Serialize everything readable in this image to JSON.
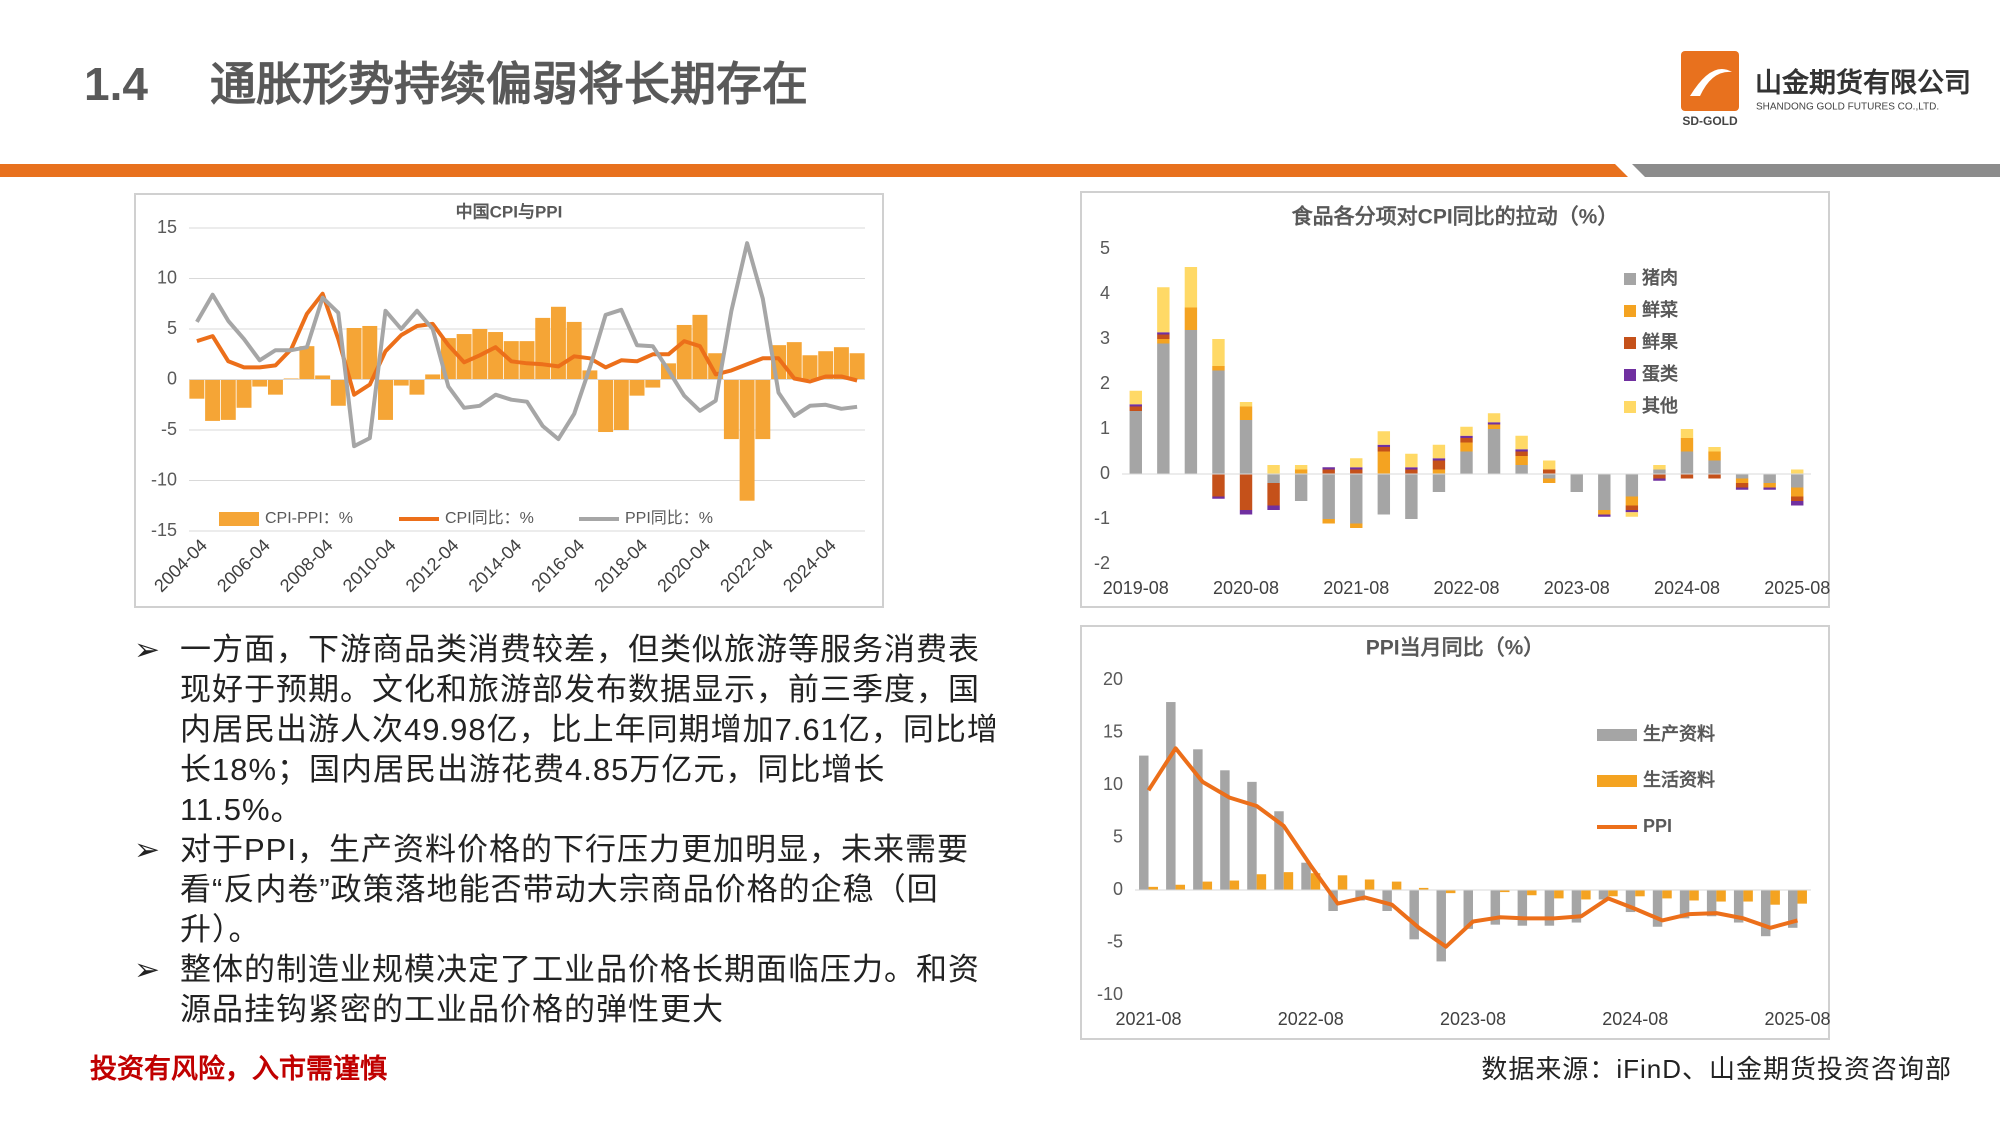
{
  "header": {
    "number": "1.4",
    "title": "通胀形势持续偏弱将长期存在"
  },
  "logo": {
    "name": "山金期货有限公司",
    "english": "SHANDONG GOLD FUTURES CO.,LTD.",
    "mark": "SD-GOLD"
  },
  "bullets": [
    "一方面，下游商品类消费较差，但类似旅游等服务消费表现好于预期。文化和旅游部发布数据显示，前三季度，国内居民出游人次49.98亿，比上年同期增加7.61亿，同比增长18%；国内居民出游花费4.85万亿元，同比增长11.5%。",
    "对于PPI，生产资料价格的下行压力更加明显，未来需要看“反内卷”政策落地能否带动大宗商品价格的企稳（回升）。",
    "整体的制造业规模决定了工业品价格长期面临压力。和资源品挂钩紧密的工业品价格的弹性更大"
  ],
  "footer": {
    "warning": "投资有风险，入市需谨慎",
    "source": "数据来源：iFinD、山金期货投资咨询部"
  },
  "chart_data": [
    {
      "type": "combo",
      "title": "中国CPI与PPI",
      "legend": "bottom",
      "grid": true,
      "x_label_rotation": -45,
      "categories": [
        "2004-04",
        null,
        null,
        null,
        "2006-04",
        null,
        null,
        null,
        "2008-04",
        null,
        null,
        null,
        "2010-04",
        null,
        null,
        null,
        "2012-04",
        null,
        null,
        null,
        "2014-04",
        null,
        null,
        null,
        "2016-04",
        null,
        null,
        null,
        "2018-04",
        null,
        null,
        null,
        "2020-04",
        null,
        null,
        null,
        "2022-04",
        null,
        null,
        null,
        "2024-04",
        null,
        null
      ],
      "series": [
        {
          "name": "CPI-PPI：%",
          "kind": "bar",
          "color": "#f5a536",
          "values": [
            -1.9,
            -4.1,
            -4.0,
            -2.8,
            -0.7,
            -1.5,
            0.1,
            3.3,
            0.4,
            -2.6,
            5.1,
            5.3,
            -4.0,
            -0.6,
            -1.5,
            0.5,
            4.1,
            4.5,
            5.0,
            4.7,
            3.8,
            3.8,
            6.1,
            7.2,
            5.7,
            0.9,
            -5.2,
            -5.0,
            -1.6,
            -0.8,
            1.6,
            5.4,
            6.4,
            2.6,
            -5.9,
            -12.0,
            -5.9,
            3.4,
            3.7,
            2.4,
            2.8,
            3.2,
            2.6
          ]
        },
        {
          "name": "CPI同比：%",
          "kind": "line",
          "color": "#ec6f1a",
          "values": [
            3.8,
            4.3,
            1.8,
            1.2,
            1.2,
            1.4,
            3.0,
            6.5,
            8.5,
            4.0,
            -1.5,
            -0.5,
            2.8,
            4.4,
            5.3,
            5.5,
            3.4,
            1.7,
            2.4,
            3.2,
            1.8,
            1.6,
            1.5,
            1.3,
            2.3,
            2.1,
            1.2,
            1.9,
            1.8,
            2.5,
            2.5,
            3.8,
            3.3,
            0.5,
            0.9,
            1.5,
            2.1,
            2.1,
            0.1,
            -0.2,
            0.3,
            0.3,
            -0.1
          ]
        },
        {
          "name": "PPI同比：%",
          "kind": "line",
          "color": "#a6a6a6",
          "values": [
            5.7,
            8.4,
            5.8,
            4.0,
            1.9,
            2.9,
            2.9,
            3.2,
            8.1,
            6.6,
            -6.6,
            -5.8,
            6.8,
            5.0,
            6.8,
            5.0,
            -0.7,
            -2.8,
            -2.6,
            -1.5,
            -2.0,
            -2.2,
            -4.6,
            -5.9,
            -3.4,
            1.2,
            6.4,
            6.9,
            3.4,
            3.3,
            0.9,
            -1.6,
            -3.1,
            -2.1,
            6.8,
            13.5,
            8.0,
            -1.3,
            -3.6,
            -2.6,
            -2.5,
            -2.9,
            -2.7
          ]
        }
      ],
      "ylim": [
        -15,
        15
      ],
      "yticks": [
        -15,
        -10,
        -5,
        0,
        5,
        10,
        15
      ]
    },
    {
      "type": "stacked_bar",
      "title": "食品各分项对CPI同比的拉动（%）",
      "legend": "right",
      "grid": false,
      "categories": [
        "2019-08",
        null,
        null,
        null,
        "2020-08",
        null,
        null,
        null,
        "2021-08",
        null,
        null,
        null,
        "2022-08",
        null,
        null,
        null,
        "2023-08",
        null,
        null,
        null,
        "2024-08",
        null,
        null,
        null,
        "2025-08"
      ],
      "series": [
        {
          "name": "猪肉",
          "color": "#a5a5a5",
          "values": [
            1.4,
            2.9,
            3.2,
            2.3,
            1.2,
            -0.2,
            -0.6,
            -1.0,
            -1.1,
            -0.9,
            -1.0,
            -0.4,
            0.5,
            1.0,
            0.2,
            -0.1,
            -0.4,
            -0.8,
            -0.5,
            0.1,
            0.5,
            0.3,
            -0.1,
            -0.2,
            -0.3
          ]
        },
        {
          "name": "鲜菜",
          "color": "#f4a321",
          "values": [
            0.0,
            0.1,
            0.5,
            0.1,
            0.3,
            0.0,
            0.1,
            -0.1,
            -0.1,
            0.5,
            0.0,
            0.1,
            0.2,
            0.1,
            0.2,
            -0.1,
            0.0,
            -0.1,
            -0.2,
            0.0,
            0.3,
            0.2,
            -0.1,
            -0.1,
            -0.2
          ]
        },
        {
          "name": "鲜果",
          "color": "#c5511a",
          "values": [
            0.1,
            0.1,
            0.0,
            -0.5,
            -0.8,
            -0.5,
            0.0,
            0.1,
            0.1,
            0.1,
            0.1,
            0.2,
            0.1,
            0.0,
            0.1,
            0.1,
            0.0,
            0.0,
            -0.1,
            -0.1,
            -0.1,
            -0.1,
            -0.1,
            0.0,
            -0.1
          ]
        },
        {
          "name": "蛋类",
          "color": "#7030a0",
          "values": [
            0.05,
            0.05,
            0.0,
            -0.05,
            -0.1,
            -0.1,
            0.0,
            0.05,
            0.05,
            0.05,
            0.05,
            0.05,
            0.05,
            0.05,
            0.05,
            0.0,
            0.0,
            -0.05,
            -0.05,
            -0.05,
            0.0,
            0.0,
            -0.05,
            -0.05,
            -0.1
          ]
        },
        {
          "name": "其他",
          "color": "#ffd966",
          "values": [
            0.3,
            1.0,
            0.9,
            0.6,
            0.1,
            0.2,
            0.1,
            0.0,
            0.2,
            0.3,
            0.3,
            0.3,
            0.2,
            0.2,
            0.3,
            0.2,
            0.0,
            0.0,
            -0.1,
            0.1,
            0.2,
            0.1,
            0.0,
            0.0,
            0.1
          ]
        }
      ],
      "ylim": [
        -2,
        5
      ],
      "yticks": [
        -2,
        -1,
        0,
        1,
        2,
        3,
        4,
        5
      ]
    },
    {
      "type": "combo",
      "title": "PPI当月同比（%）",
      "legend": "right",
      "grid": false,
      "categories": [
        "2021-08",
        null,
        null,
        null,
        null,
        null,
        "2022-08",
        null,
        null,
        null,
        null,
        null,
        "2023-08",
        null,
        null,
        null,
        null,
        null,
        "2024-08",
        null,
        null,
        null,
        null,
        null,
        "2025-08"
      ],
      "series": [
        {
          "name": "生产资料",
          "kind": "bar",
          "color": "#a5a5a5",
          "values": [
            12.8,
            17.9,
            13.4,
            11.4,
            10.3,
            7.5,
            2.6,
            -2.0,
            -1.0,
            -2.0,
            -4.7,
            -6.8,
            -3.7,
            -3.3,
            -3.4,
            -3.4,
            -3.1,
            -0.9,
            -2.1,
            -3.5,
            -2.7,
            -2.5,
            -3.1,
            -4.4,
            -3.6
          ]
        },
        {
          "name": "生活资料",
          "kind": "bar",
          "color": "#f4a321",
          "values": [
            0.3,
            0.5,
            0.8,
            0.9,
            1.5,
            1.7,
            1.6,
            1.4,
            1.0,
            0.8,
            0.2,
            -0.3,
            0.0,
            -0.2,
            -0.5,
            -0.8,
            -0.9,
            -0.6,
            -0.6,
            -0.8,
            -1.0,
            -1.1,
            -1.1,
            -1.4,
            -1.3
          ]
        },
        {
          "name": "PPI",
          "kind": "line",
          "color": "#ec6f1a",
          "values": [
            9.5,
            13.5,
            10.3,
            8.8,
            8.0,
            6.1,
            2.3,
            -1.3,
            -0.7,
            -1.4,
            -3.6,
            -5.4,
            -3.0,
            -2.6,
            -2.7,
            -2.7,
            -2.5,
            -0.8,
            -1.8,
            -2.9,
            -2.3,
            -2.2,
            -2.7,
            -3.6,
            -2.9
          ]
        }
      ],
      "ylim": [
        -10,
        20
      ],
      "yticks": [
        -10,
        -5,
        0,
        5,
        10,
        15,
        20
      ]
    }
  ]
}
